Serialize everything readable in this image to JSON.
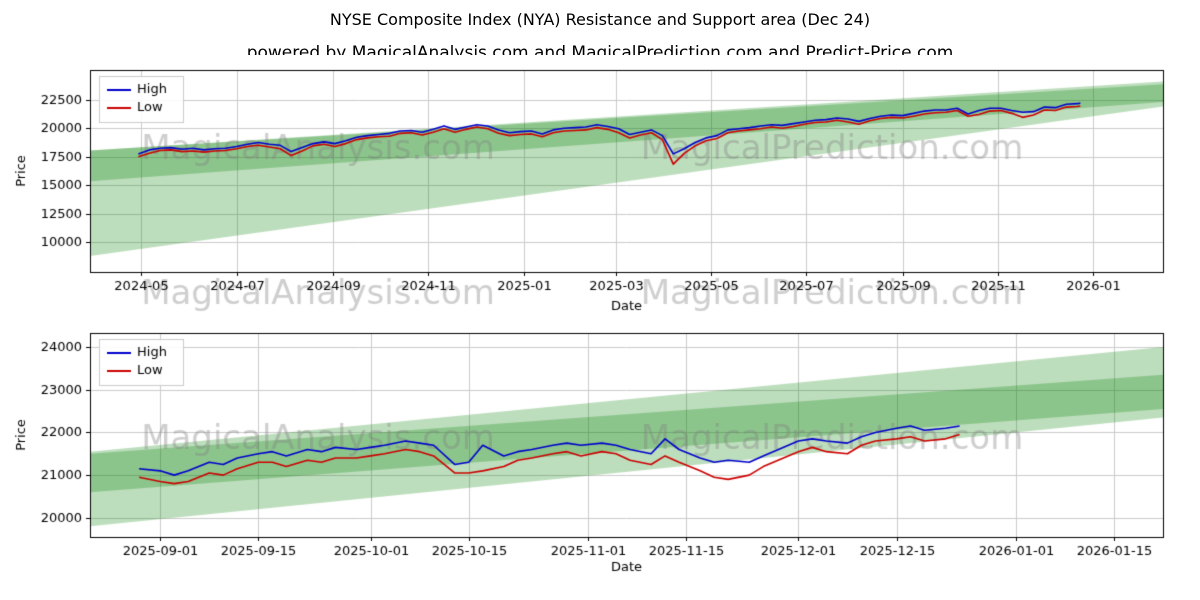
{
  "title": "NYSE Composite Index (NYA) Resistance and Support area (Dec 24)",
  "subtitle": "powered by MagicalAnalysis.com and MagicalPrediction.com and Predict-Price.com",
  "watermark": {
    "texts": [
      "MagicalAnalysis.com",
      "MagicalPrediction.com"
    ],
    "color": "rgba(128,128,128,0.38)"
  },
  "colors": {
    "high": "#0000cc",
    "low": "#cc0000",
    "band": "rgba(0,128,0,0.26)",
    "grid": "#cccccc",
    "axis": "#000000",
    "legend_border": "#cccccc"
  },
  "chart_data": [
    {
      "type": "line",
      "title": "",
      "xlabel": "Date",
      "ylabel": "Price",
      "legend": [
        "High",
        "Low"
      ],
      "legend_position": "upper-left",
      "grid": true,
      "xlim": [
        "2024-03-29",
        "2026-02-15"
      ],
      "ylim": [
        7400,
        25100
      ],
      "x_ticks": [
        "2024-05-01",
        "2024-07-01",
        "2024-09-01",
        "2024-11-01",
        "2025-01-01",
        "2025-03-01",
        "2025-05-01",
        "2025-07-01",
        "2025-09-01",
        "2025-11-01",
        "2026-01-01"
      ],
      "x_tick_labels": [
        "2024-05",
        "2024-07",
        "2024-09",
        "2024-11",
        "2025-01",
        "2025-03",
        "2025-05",
        "2025-07",
        "2025-09",
        "2025-11",
        "2026-01"
      ],
      "y_ticks": [
        10000,
        12500,
        15000,
        17500,
        20000,
        22500
      ],
      "x": [
        "2024-04-29",
        "2024-05-06",
        "2024-05-13",
        "2024-05-20",
        "2024-05-27",
        "2024-06-03",
        "2024-06-10",
        "2024-06-17",
        "2024-06-24",
        "2024-07-01",
        "2024-07-08",
        "2024-07-15",
        "2024-07-22",
        "2024-07-29",
        "2024-08-05",
        "2024-08-12",
        "2024-08-19",
        "2024-08-26",
        "2024-09-02",
        "2024-09-09",
        "2024-09-16",
        "2024-09-23",
        "2024-09-30",
        "2024-10-07",
        "2024-10-14",
        "2024-10-21",
        "2024-10-28",
        "2024-11-04",
        "2024-11-11",
        "2024-11-18",
        "2024-11-25",
        "2024-12-02",
        "2024-12-09",
        "2024-12-16",
        "2024-12-23",
        "2024-12-30",
        "2025-01-06",
        "2025-01-13",
        "2025-01-20",
        "2025-01-27",
        "2025-02-03",
        "2025-02-10",
        "2025-02-17",
        "2025-02-24",
        "2025-03-03",
        "2025-03-10",
        "2025-03-17",
        "2025-03-24",
        "2025-03-31",
        "2025-04-07",
        "2025-04-14",
        "2025-04-21",
        "2025-04-28",
        "2025-05-05",
        "2025-05-12",
        "2025-05-19",
        "2025-05-26",
        "2025-06-02",
        "2025-06-09",
        "2025-06-16",
        "2025-06-23",
        "2025-06-30",
        "2025-07-07",
        "2025-07-14",
        "2025-07-21",
        "2025-07-28",
        "2025-08-04",
        "2025-08-11",
        "2025-08-18",
        "2025-08-25",
        "2025-09-01",
        "2025-09-08",
        "2025-09-15",
        "2025-09-22",
        "2025-09-29",
        "2025-10-06",
        "2025-10-13",
        "2025-10-20",
        "2025-10-27",
        "2025-11-03",
        "2025-11-10",
        "2025-11-17",
        "2025-11-24",
        "2025-12-01",
        "2025-12-08",
        "2025-12-15",
        "2025-12-22",
        "2025-12-24"
      ],
      "series": [
        {
          "name": "High",
          "color": "#0000cc",
          "values": [
            17750,
            18100,
            18250,
            18300,
            18150,
            18250,
            18100,
            18200,
            18250,
            18400,
            18600,
            18750,
            18600,
            18500,
            17950,
            18300,
            18650,
            18800,
            18650,
            18900,
            19200,
            19350,
            19450,
            19550,
            19750,
            19800,
            19650,
            19900,
            20200,
            19900,
            20100,
            20300,
            20200,
            19850,
            19600,
            19700,
            19750,
            19500,
            19850,
            20000,
            20050,
            20100,
            20300,
            20150,
            19950,
            19450,
            19650,
            19850,
            19350,
            17750,
            18200,
            18750,
            19150,
            19350,
            19850,
            19950,
            20050,
            20200,
            20300,
            20250,
            20400,
            20550,
            20700,
            20750,
            20900,
            20800,
            20600,
            20850,
            21050,
            21150,
            21100,
            21300,
            21500,
            21600,
            21600,
            21750,
            21250,
            21550,
            21750,
            21750,
            21550,
            21400,
            21450,
            21850,
            21800,
            22100,
            22150,
            22200
          ]
        },
        {
          "name": "Low",
          "color": "#cc0000",
          "values": [
            17500,
            17800,
            18050,
            18100,
            17950,
            18000,
            17900,
            18000,
            18050,
            18200,
            18400,
            18500,
            18350,
            18200,
            17600,
            18000,
            18450,
            18600,
            18400,
            18650,
            19000,
            19150,
            19250,
            19300,
            19550,
            19600,
            19400,
            19650,
            19950,
            19650,
            19900,
            20100,
            19950,
            19550,
            19350,
            19450,
            19500,
            19250,
            19600,
            19750,
            19800,
            19850,
            20050,
            19900,
            19600,
            19150,
            19400,
            19600,
            19000,
            16850,
            17800,
            18450,
            18900,
            19100,
            19600,
            19750,
            19850,
            19950,
            20100,
            20000,
            20150,
            20350,
            20500,
            20550,
            20700,
            20550,
            20350,
            20650,
            20850,
            20950,
            20900,
            21050,
            21250,
            21350,
            21400,
            21550,
            21050,
            21200,
            21500,
            21550,
            21300,
            20950,
            21150,
            21600,
            21550,
            21850,
            21900,
            21950
          ]
        }
      ],
      "bands": [
        {
          "x": [
            "2024-03-29",
            "2026-02-15"
          ],
          "lower": [
            8800,
            21900
          ],
          "upper": [
            18050,
            24100
          ]
        },
        {
          "x": [
            "2024-03-29",
            "2026-02-15"
          ],
          "lower": [
            15350,
            22300
          ],
          "upper": [
            18050,
            23850
          ]
        }
      ]
    },
    {
      "type": "line",
      "title": "",
      "xlabel": "Date",
      "ylabel": "Price",
      "legend": [
        "High",
        "Low"
      ],
      "legend_position": "upper-left",
      "grid": true,
      "xlim": [
        "2025-08-22",
        "2026-01-22"
      ],
      "ylim": [
        19550,
        24330
      ],
      "x_ticks": [
        "2025-09-01",
        "2025-09-15",
        "2025-10-01",
        "2025-10-15",
        "2025-11-01",
        "2025-11-15",
        "2025-12-01",
        "2025-12-15",
        "2026-01-01",
        "2026-01-15"
      ],
      "x_tick_labels": [
        "2025-09-01",
        "2025-09-15",
        "2025-10-01",
        "2025-10-15",
        "2025-11-01",
        "2025-11-15",
        "2025-12-01",
        "2025-12-15",
        "2026-01-01",
        "2026-01-15"
      ],
      "y_ticks": [
        20000,
        21000,
        22000,
        23000,
        24000
      ],
      "x": [
        "2025-08-29",
        "2025-09-01",
        "2025-09-03",
        "2025-09-05",
        "2025-09-08",
        "2025-09-10",
        "2025-09-12",
        "2025-09-15",
        "2025-09-17",
        "2025-09-19",
        "2025-09-22",
        "2025-09-24",
        "2025-09-26",
        "2025-09-29",
        "2025-10-01",
        "2025-10-03",
        "2025-10-06",
        "2025-10-08",
        "2025-10-10",
        "2025-10-13",
        "2025-10-15",
        "2025-10-17",
        "2025-10-20",
        "2025-10-22",
        "2025-10-24",
        "2025-10-27",
        "2025-10-29",
        "2025-10-31",
        "2025-11-03",
        "2025-11-05",
        "2025-11-07",
        "2025-11-10",
        "2025-11-12",
        "2025-11-14",
        "2025-11-17",
        "2025-11-19",
        "2025-11-21",
        "2025-11-24",
        "2025-11-26",
        "2025-12-01",
        "2025-12-03",
        "2025-12-05",
        "2025-12-08",
        "2025-12-10",
        "2025-12-12",
        "2025-12-15",
        "2025-12-17",
        "2025-12-19",
        "2025-12-22",
        "2025-12-24"
      ],
      "series": [
        {
          "name": "High",
          "color": "#0000cc",
          "values": [
            21150,
            21100,
            21000,
            21100,
            21300,
            21250,
            21400,
            21500,
            21550,
            21450,
            21600,
            21550,
            21650,
            21600,
            21650,
            21700,
            21800,
            21750,
            21700,
            21250,
            21300,
            21700,
            21450,
            21550,
            21600,
            21700,
            21750,
            21700,
            21750,
            21700,
            21600,
            21500,
            21850,
            21600,
            21400,
            21300,
            21350,
            21300,
            21450,
            21800,
            21850,
            21800,
            21750,
            21900,
            22000,
            22100,
            22150,
            22050,
            22100,
            22150
          ]
        },
        {
          "name": "Low",
          "color": "#cc0000",
          "values": [
            20950,
            20850,
            20800,
            20850,
            21050,
            21000,
            21150,
            21300,
            21300,
            21200,
            21350,
            21300,
            21400,
            21400,
            21450,
            21500,
            21600,
            21550,
            21450,
            21050,
            21050,
            21100,
            21200,
            21350,
            21400,
            21500,
            21550,
            21450,
            21550,
            21500,
            21350,
            21250,
            21450,
            21300,
            21100,
            20950,
            20900,
            21000,
            21200,
            21550,
            21650,
            21550,
            21500,
            21700,
            21800,
            21850,
            21900,
            21800,
            21850,
            21950
          ]
        }
      ],
      "bands": [
        {
          "x": [
            "2025-08-22",
            "2026-01-22"
          ],
          "lower": [
            19800,
            22350
          ],
          "upper": [
            21550,
            24000
          ]
        },
        {
          "x": [
            "2025-08-22",
            "2026-01-22"
          ],
          "lower": [
            20600,
            22550
          ],
          "upper": [
            21500,
            23350
          ]
        }
      ]
    }
  ]
}
